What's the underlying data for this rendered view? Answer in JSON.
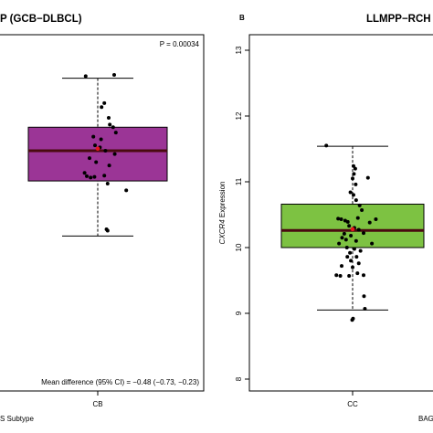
{
  "chart_data": [
    {
      "type": "box",
      "panel_title": "P (GCB−DLBCL)",
      "pvalue_label": "P = 0.00034",
      "category": "CB",
      "xlabel": "S Subtype",
      "annotation": "Mean difference (95% CI) = −0.48 (−0.73, −0.23)",
      "box": {
        "whisker_low": 9.2,
        "q1": 10.02,
        "median": 10.47,
        "q3": 10.82,
        "whisker_high": 11.55
      },
      "mean": 10.5,
      "colors": {
        "box": "#9b3596",
        "median": "#4a0a10",
        "points": "#000000",
        "mean": "#e8141c"
      },
      "points": [
        {
          "x": -0.22,
          "y": 11.58
        },
        {
          "x": 0.3,
          "y": 11.6
        },
        {
          "x": 0.07,
          "y": 11.12
        },
        {
          "x": 0.12,
          "y": 11.18
        },
        {
          "x": 0.2,
          "y": 10.96
        },
        {
          "x": 0.22,
          "y": 10.86
        },
        {
          "x": 0.28,
          "y": 10.82
        },
        {
          "x": 0.33,
          "y": 10.74
        },
        {
          "x": -0.08,
          "y": 10.68
        },
        {
          "x": 0.06,
          "y": 10.64
        },
        {
          "x": -0.05,
          "y": 10.55
        },
        {
          "x": 0.04,
          "y": 10.52
        },
        {
          "x": 0.14,
          "y": 10.47
        },
        {
          "x": 0.31,
          "y": 10.42
        },
        {
          "x": -0.15,
          "y": 10.36
        },
        {
          "x": -0.03,
          "y": 10.3
        },
        {
          "x": 0.21,
          "y": 10.25
        },
        {
          "x": -0.24,
          "y": 10.14
        },
        {
          "x": -0.2,
          "y": 10.09
        },
        {
          "x": -0.13,
          "y": 10.07
        },
        {
          "x": -0.06,
          "y": 10.08
        },
        {
          "x": 0.12,
          "y": 10.1
        },
        {
          "x": 0.18,
          "y": 9.98
        },
        {
          "x": 0.52,
          "y": 9.88
        },
        {
          "x": 0.16,
          "y": 9.3
        },
        {
          "x": 0.18,
          "y": 9.28
        }
      ]
    },
    {
      "type": "box",
      "panel_letter": "B",
      "panel_title": "LLMPP−RCH",
      "category": "CC",
      "ylabel_gene": "CXCR4",
      "ylabel_rest": " Expression",
      "xlabel": "BAG",
      "ylim": [
        8,
        13
      ],
      "yticks": [
        8,
        9,
        10,
        11,
        12,
        13
      ],
      "box": {
        "whisker_low": 9.05,
        "q1": 10.0,
        "median": 10.26,
        "q3": 10.66,
        "whisker_high": 11.54
      },
      "mean": 10.28,
      "colors": {
        "box": "#7dc242",
        "median": "#4a0a10",
        "points": "#000000",
        "mean": "#e8141c"
      },
      "points": [
        {
          "x": -0.6,
          "y": 11.55
        },
        {
          "x": 0.02,
          "y": 11.24
        },
        {
          "x": 0.06,
          "y": 11.2
        },
        {
          "x": 0.03,
          "y": 11.12
        },
        {
          "x": 0.0,
          "y": 11.05
        },
        {
          "x": 0.35,
          "y": 11.06
        },
        {
          "x": 0.07,
          "y": 10.96
        },
        {
          "x": -0.05,
          "y": 10.84
        },
        {
          "x": 0.02,
          "y": 10.8
        },
        {
          "x": 0.08,
          "y": 10.72
        },
        {
          "x": 0.16,
          "y": 10.64
        },
        {
          "x": 0.21,
          "y": 10.57
        },
        {
          "x": -0.33,
          "y": 10.44
        },
        {
          "x": -0.26,
          "y": 10.43
        },
        {
          "x": -0.17,
          "y": 10.41
        },
        {
          "x": -0.11,
          "y": 10.39
        },
        {
          "x": 0.12,
          "y": 10.45
        },
        {
          "x": 0.53,
          "y": 10.43
        },
        {
          "x": 0.39,
          "y": 10.38
        },
        {
          "x": -0.08,
          "y": 10.33
        },
        {
          "x": 0.04,
          "y": 10.3
        },
        {
          "x": 0.14,
          "y": 10.27
        },
        {
          "x": -0.19,
          "y": 10.21
        },
        {
          "x": -0.04,
          "y": 10.18
        },
        {
          "x": 0.25,
          "y": 10.22
        },
        {
          "x": -0.24,
          "y": 10.15
        },
        {
          "x": -0.15,
          "y": 10.12
        },
        {
          "x": 0.08,
          "y": 10.1
        },
        {
          "x": -0.31,
          "y": 10.06
        },
        {
          "x": 0.44,
          "y": 10.06
        },
        {
          "x": -0.13,
          "y": 10.0
        },
        {
          "x": 0.04,
          "y": 9.98
        },
        {
          "x": 0.18,
          "y": 9.95
        },
        {
          "x": -0.06,
          "y": 9.92
        },
        {
          "x": -0.12,
          "y": 9.86
        },
        {
          "x": 0.09,
          "y": 9.86
        },
        {
          "x": -0.04,
          "y": 9.8
        },
        {
          "x": 0.14,
          "y": 9.76
        },
        {
          "x": -0.25,
          "y": 9.72
        },
        {
          "x": 0.0,
          "y": 9.7
        },
        {
          "x": -0.37,
          "y": 9.58
        },
        {
          "x": -0.28,
          "y": 9.57
        },
        {
          "x": -0.08,
          "y": 9.57
        },
        {
          "x": 0.11,
          "y": 9.61
        },
        {
          "x": 0.25,
          "y": 9.58
        },
        {
          "x": 0.26,
          "y": 9.26
        },
        {
          "x": 0.28,
          "y": 9.07
        },
        {
          "x": 0.01,
          "y": 8.92
        },
        {
          "x": -0.01,
          "y": 8.9
        }
      ]
    }
  ]
}
